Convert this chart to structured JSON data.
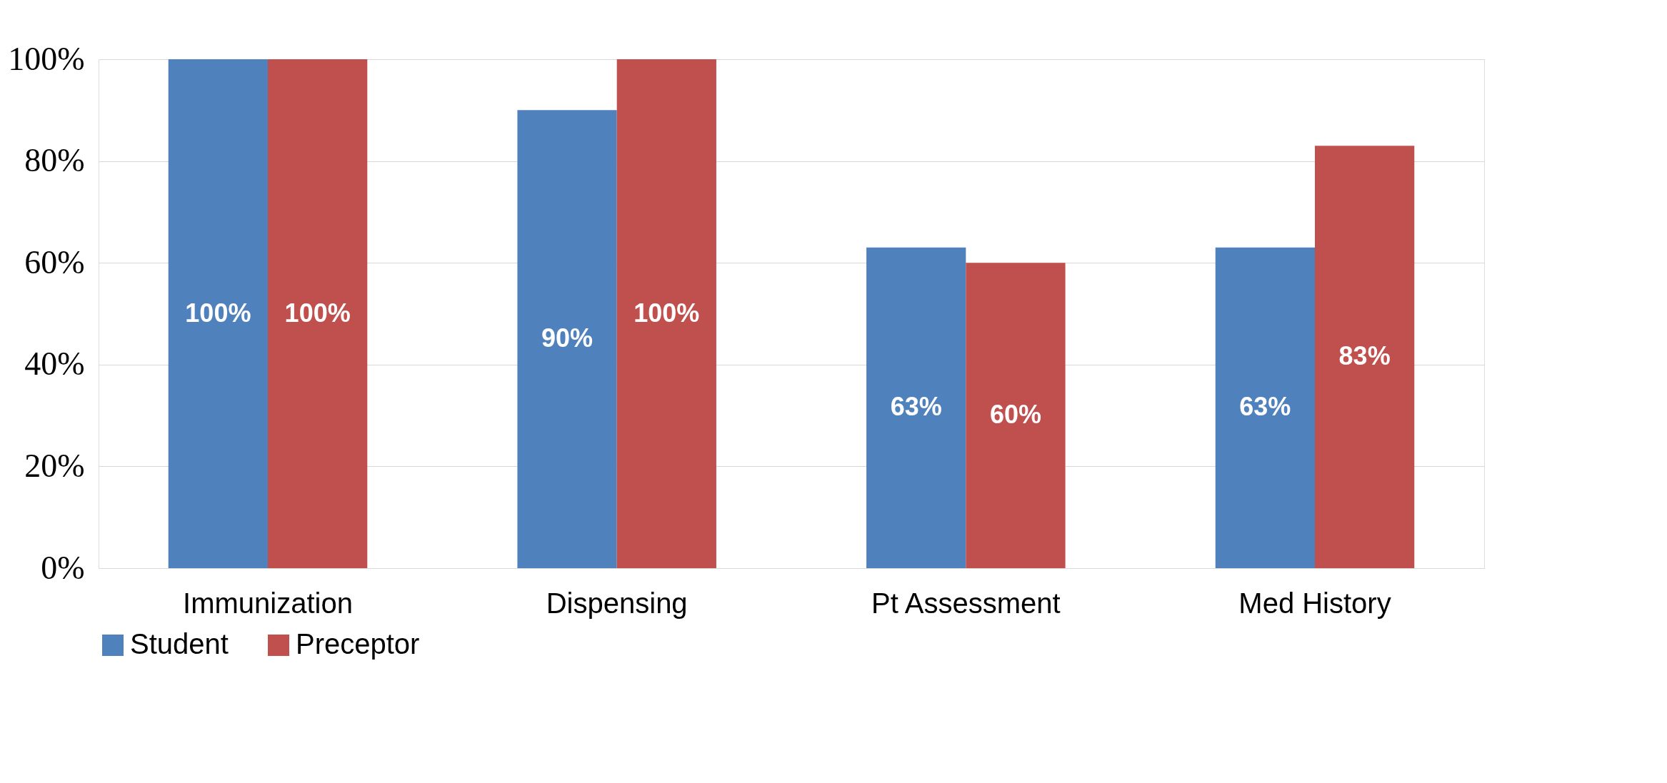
{
  "chart_data": {
    "type": "bar",
    "categories": [
      "Immunization",
      "Dispensing",
      "Pt Assessment",
      "Med History"
    ],
    "series": [
      {
        "name": "Student",
        "color": "#4f81bd",
        "values": [
          100,
          90,
          63,
          63
        ],
        "value_labels": [
          "100%",
          "90%",
          "63%",
          "63%"
        ]
      },
      {
        "name": "Preceptor",
        "color": "#c0504d",
        "values": [
          100,
          100,
          60,
          83
        ],
        "value_labels": [
          "100%",
          "100%",
          "60%",
          "83%"
        ]
      }
    ],
    "ylim": [
      0,
      100
    ],
    "yticks": [
      {
        "value": 0,
        "label": "0%"
      },
      {
        "value": 20,
        "label": "20%"
      },
      {
        "value": 40,
        "label": "40%"
      },
      {
        "value": 60,
        "label": "60%"
      },
      {
        "value": 80,
        "label": "80%"
      },
      {
        "value": 100,
        "label": "100%"
      }
    ],
    "grid": "y",
    "legend": "bottom"
  }
}
